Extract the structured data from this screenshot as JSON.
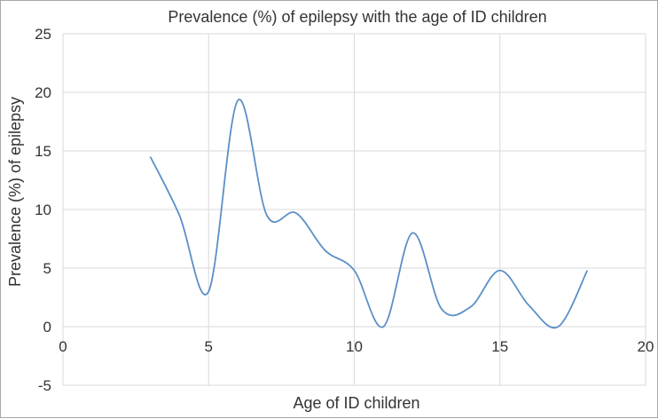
{
  "chart_data": {
    "type": "line",
    "title": "Prevalence (%) of epilepsy with the age of ID children",
    "xlabel": "Age of ID children",
    "ylabel": "Prevalence (%) of epilepsy",
    "xlim": [
      0,
      20
    ],
    "ylim": [
      -5,
      25
    ],
    "x_ticks": [
      "0",
      "5",
      "10",
      "15",
      "20"
    ],
    "y_ticks": [
      "25",
      "20",
      "15",
      "10",
      "5",
      "0",
      "-5"
    ],
    "grid": true,
    "smooth": true,
    "line_color": "#5b8fc7",
    "series": [
      {
        "x": [
          3,
          4,
          5,
          6,
          7,
          8,
          9,
          10,
          11,
          12,
          13,
          14,
          15,
          16,
          17,
          18
        ],
        "y": [
          14.5,
          9.5,
          3,
          19.3,
          9.5,
          9.7,
          6.5,
          4.8,
          0,
          8,
          1.5,
          1.7,
          4.8,
          1.8,
          0,
          4.8
        ]
      }
    ]
  }
}
